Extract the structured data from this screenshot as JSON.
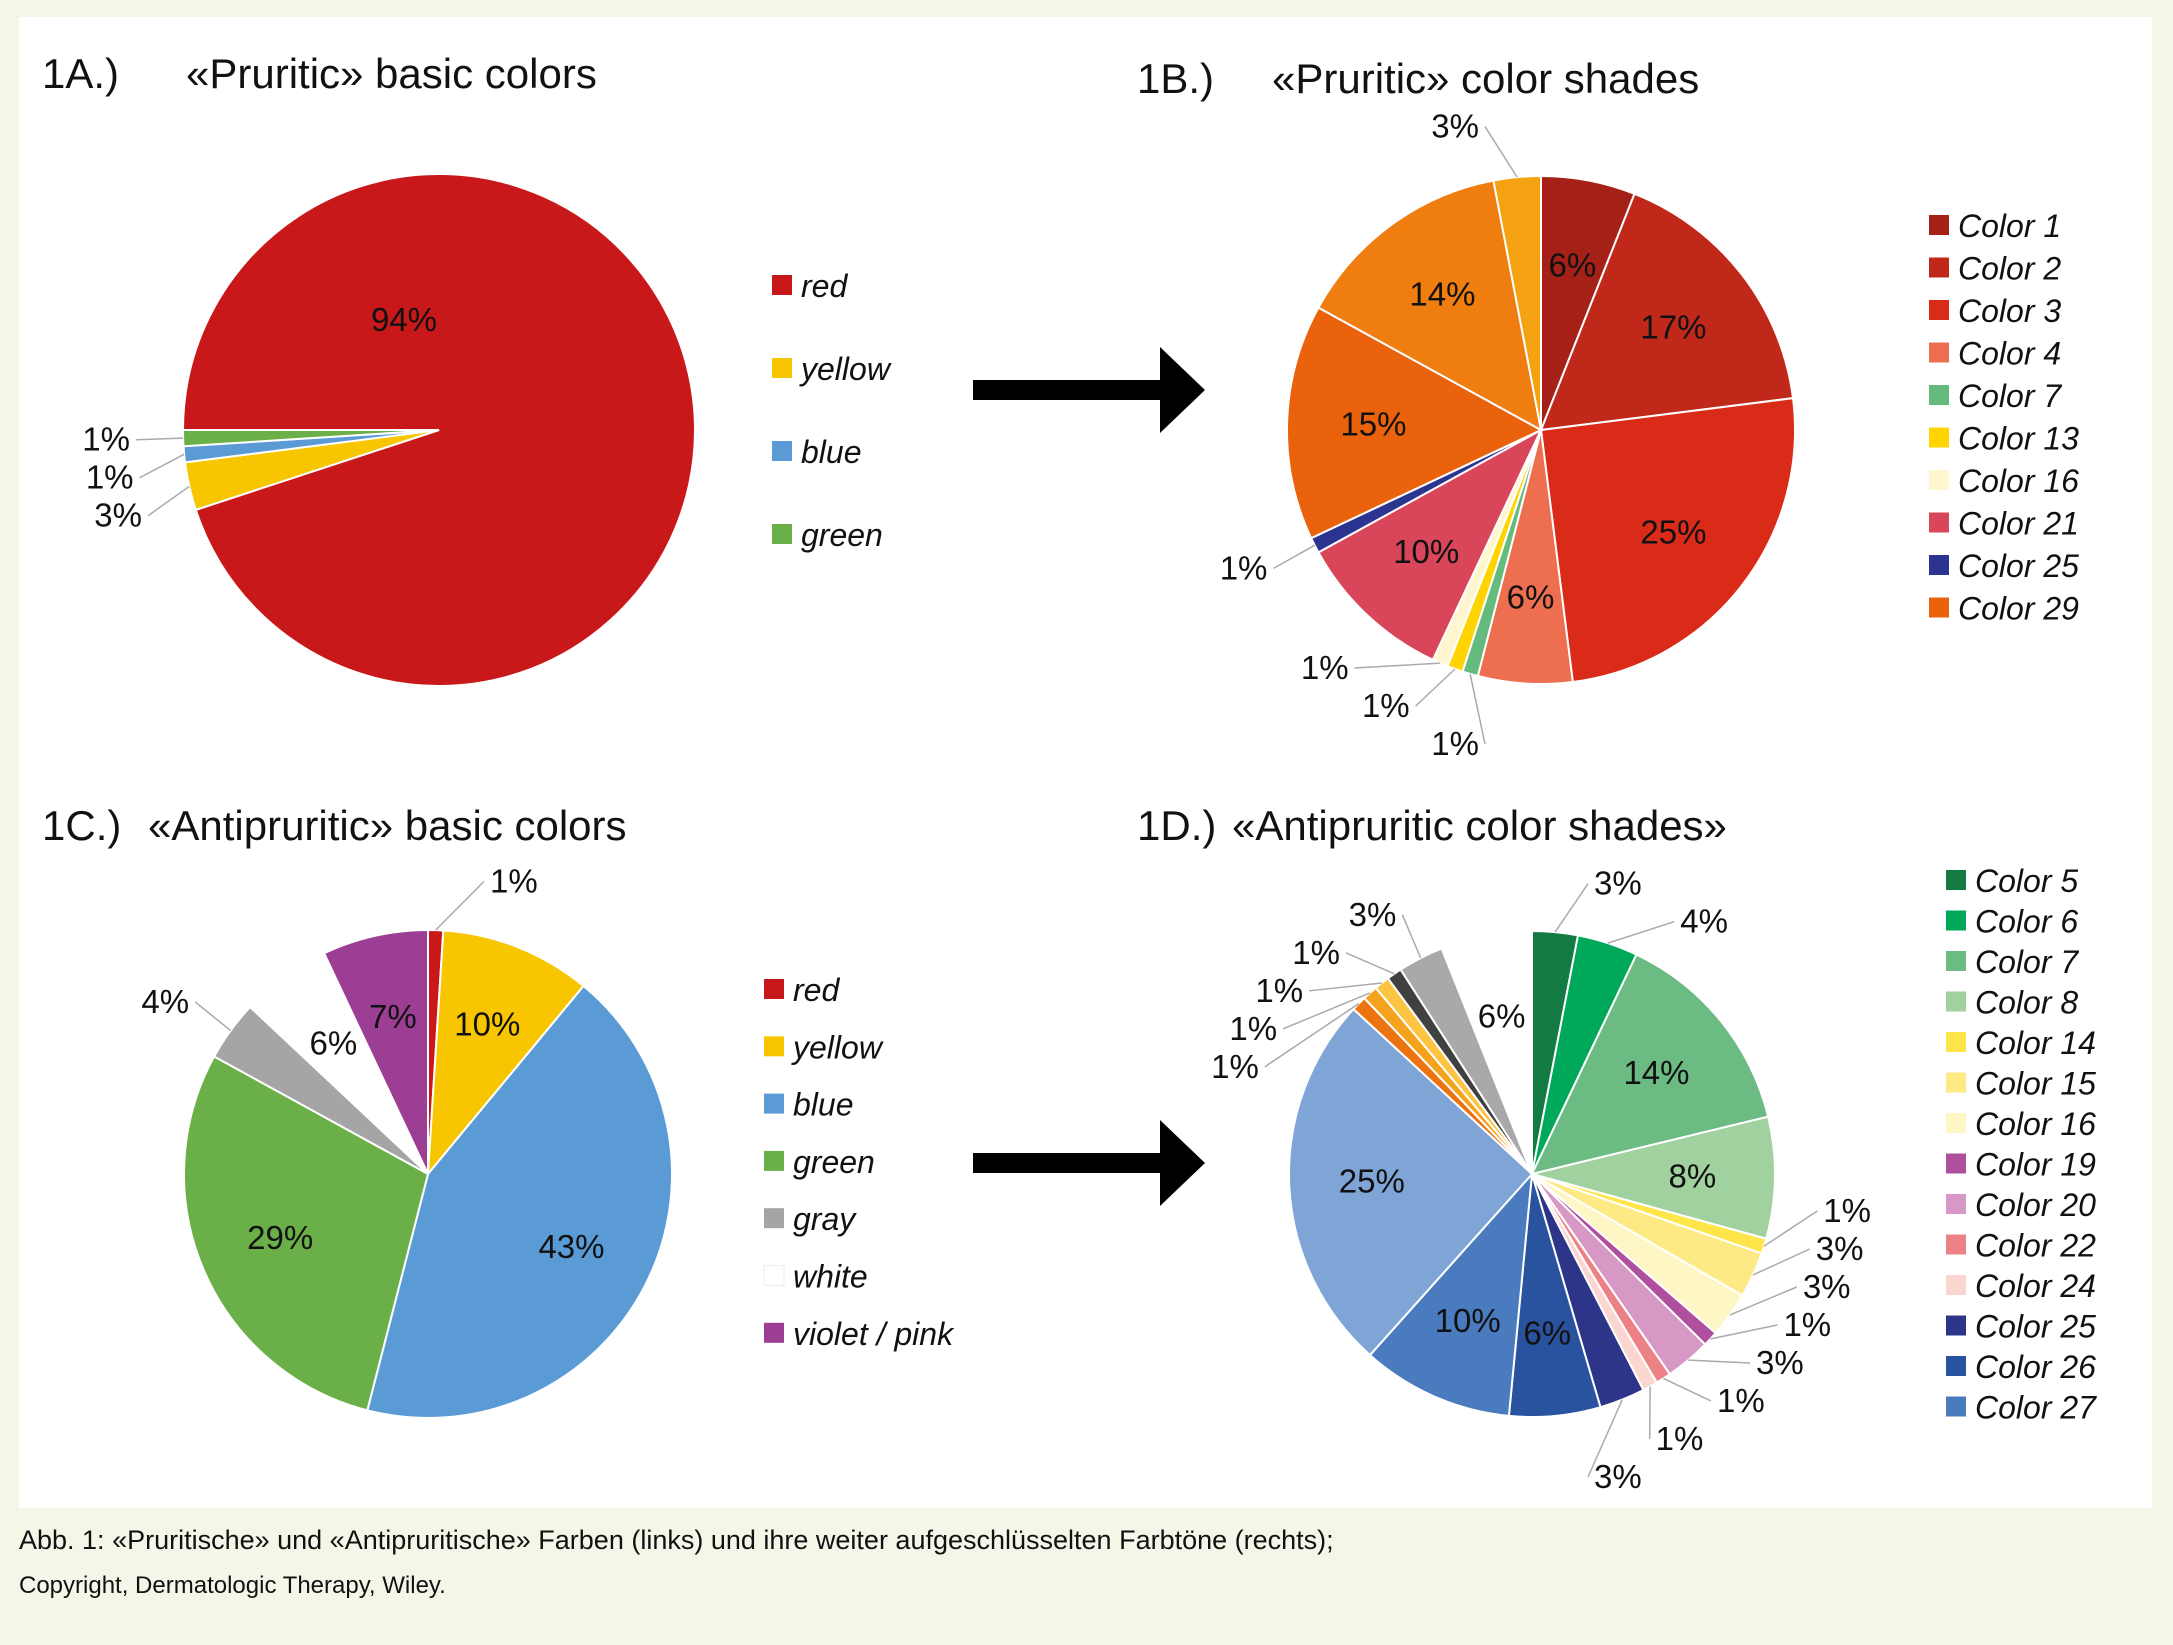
{
  "caption": {
    "line1": "Abb. 1: «Pruritische» und «Antipruritische» Farben (links) und ihre weiter aufgeschlüsselten Farbtöne (rechts);",
    "line2": "Copyright, Dermatologic Therapy, Wiley."
  },
  "chart_data": [
    {
      "id": "1A",
      "type": "pie",
      "panel_label": "1A.)",
      "title": "«Pruritic» basic colors",
      "slices": [
        {
          "name": "red",
          "value": 94,
          "label": "94%",
          "color": "#c8181a",
          "legend": true
        },
        {
          "name": "yellow",
          "value": 3,
          "label": "3%",
          "color": "#f7c600",
          "legend": true
        },
        {
          "name": "blue",
          "value": 1,
          "label": "1%",
          "color": "#5b9bd5",
          "legend": true
        },
        {
          "name": "green",
          "value": 1,
          "label": "1%",
          "color": "#6aaf48",
          "legend": true
        }
      ],
      "legend_position": "right"
    },
    {
      "id": "1B",
      "type": "pie",
      "panel_label": "1B.)",
      "title": "«Pruritic» color shades",
      "slices": [
        {
          "name": "Color 1",
          "value": 6,
          "label": "6%",
          "color": "#a52117",
          "legend": true
        },
        {
          "name": "Color 2",
          "value": 17,
          "label": "17%",
          "color": "#c0281a",
          "legend": true
        },
        {
          "name": "Color 3",
          "value": 25,
          "label": "25%",
          "color": "#d92b17",
          "legend": true
        },
        {
          "name": "Color 4",
          "value": 6,
          "label": "6%",
          "color": "#ee6e50",
          "legend": true
        },
        {
          "name": "Color 7",
          "value": 1,
          "label": "1%",
          "color": "#65bb7e",
          "legend": true
        },
        {
          "name": "Color 13",
          "value": 1,
          "label": "1%",
          "color": "#ffd400",
          "legend": true
        },
        {
          "name": "Color 16",
          "value": 1,
          "label": "1%",
          "color": "#fff6cf",
          "legend": true
        },
        {
          "name": "Color 21",
          "value": 10,
          "label": "10%",
          "color": "#d9465a",
          "legend": true
        },
        {
          "name": "Color 25",
          "value": 1,
          "label": "1%",
          "color": "#2b3590",
          "legend": true
        },
        {
          "name": "Color 29",
          "value": 15,
          "label": "15%",
          "color": "#ea620c",
          "legend": true
        },
        {
          "name": "",
          "value": 14,
          "label": "14%",
          "color": "#ef7d0f",
          "legend": false
        },
        {
          "name": "",
          "value": 3,
          "label": "3%",
          "color": "#f5a212",
          "legend": false
        }
      ],
      "legend_position": "right"
    },
    {
      "id": "1C",
      "type": "pie",
      "panel_label": "1C.)",
      "title": "«Antipruritic» basic colors",
      "slices": [
        {
          "name": "red",
          "value": 1,
          "label": "1%",
          "color": "#c8181a",
          "legend": true
        },
        {
          "name": "yellow",
          "value": 10,
          "label": "10%",
          "color": "#f7c600",
          "legend": true
        },
        {
          "name": "blue",
          "value": 43,
          "label": "43%",
          "color": "#5b9bd5",
          "legend": true
        },
        {
          "name": "green",
          "value": 29,
          "label": "29%",
          "color": "#6aaf48",
          "legend": true
        },
        {
          "name": "gray",
          "value": 4,
          "label": "4%",
          "color": "#a5a5a5",
          "legend": true
        },
        {
          "name": "white",
          "value": 6,
          "label": "6%",
          "color": "#ffffff",
          "legend": true
        },
        {
          "name": "violet / pink",
          "value": 7,
          "label": "7%",
          "color": "#9c3f94",
          "legend": true
        }
      ],
      "legend_position": "right"
    },
    {
      "id": "1D",
      "type": "pie",
      "panel_label": "1D.)",
      "title": "«Antipruritic color shades»",
      "slices": [
        {
          "name": "Color 5",
          "value": 3,
          "label": "3%",
          "color": "#137a41",
          "legend": true
        },
        {
          "name": "Color 6",
          "value": 4,
          "label": "4%",
          "color": "#00a859",
          "legend": true
        },
        {
          "name": "Color 7",
          "value": 14,
          "label": "14%",
          "color": "#6cbb82",
          "legend": true
        },
        {
          "name": "Color 8",
          "value": 8,
          "label": "8%",
          "color": "#a2d1a0",
          "legend": true
        },
        {
          "name": "Color 14",
          "value": 1,
          "label": "1%",
          "color": "#fde54a",
          "legend": true
        },
        {
          "name": "Color 15",
          "value": 3,
          "label": "3%",
          "color": "#fdea85",
          "legend": true
        },
        {
          "name": "Color 16",
          "value": 3,
          "label": "3%",
          "color": "#fff6c6",
          "legend": true
        },
        {
          "name": "Color 19",
          "value": 1,
          "label": "1%",
          "color": "#b14f9f",
          "legend": true
        },
        {
          "name": "Color 20",
          "value": 3,
          "label": "3%",
          "color": "#d898c6",
          "legend": true
        },
        {
          "name": "Color 22",
          "value": 1,
          "label": "1%",
          "color": "#ec8286",
          "legend": true
        },
        {
          "name": "Color 24",
          "value": 1,
          "label": "1%",
          "color": "#fbd5cf",
          "legend": true
        },
        {
          "name": "Color 25",
          "value": 3,
          "label": "3%",
          "color": "#2c3588",
          "legend": true
        },
        {
          "name": "Color 26",
          "value": 6,
          "label": "6%",
          "color": "#29539e",
          "legend": true
        },
        {
          "name": "Color 27",
          "value": 10,
          "label": "10%",
          "color": "#4a7bbf",
          "legend": true
        },
        {
          "name": "",
          "value": 25,
          "label": "25%",
          "color": "#7fa5d6",
          "legend": false
        },
        {
          "name": "",
          "value": 1,
          "label": "1%",
          "color": "#ec7410",
          "legend": false
        },
        {
          "name": "",
          "value": 1,
          "label": "1%",
          "color": "#f5a31c",
          "legend": false
        },
        {
          "name": "",
          "value": 1,
          "label": "1%",
          "color": "#fcc441",
          "legend": false
        },
        {
          "name": "",
          "value": 1,
          "label": "1%",
          "color": "#404040",
          "legend": false
        },
        {
          "name": "",
          "value": 3,
          "label": "3%",
          "color": "#a9a9a9",
          "legend": false
        },
        {
          "name": "",
          "value": 6,
          "label": "6%",
          "color": "#ffffff",
          "legend": false
        }
      ],
      "legend_position": "right"
    }
  ]
}
